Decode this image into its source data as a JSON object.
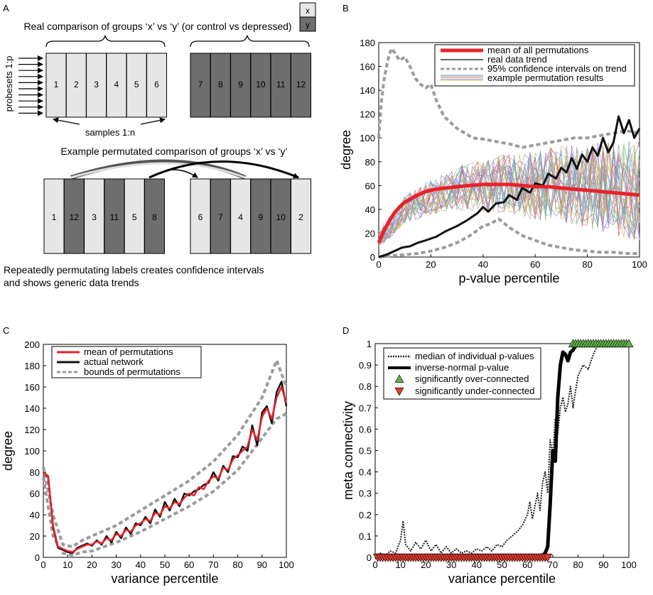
{
  "panel_labels": {
    "a": "A",
    "b": "B",
    "c": "C",
    "d": "D"
  },
  "panelA": {
    "legend_x": "x",
    "legend_y": "y",
    "title_real": "Real comparison of groups ‘x’ vs ‘y’ (or control vs depressed)",
    "probesets_label": "probesets 1:p",
    "samples_label": "samples 1:n",
    "top_boxes": [
      "1",
      "2",
      "3",
      "4",
      "5",
      "6",
      "7",
      "8",
      "9",
      "10",
      "11",
      "12"
    ],
    "top_shades": [
      "light",
      "light",
      "light",
      "light",
      "light",
      "light",
      "dark",
      "dark",
      "dark",
      "dark",
      "dark",
      "dark"
    ],
    "title_perm": "Example permutated comparison of groups ‘x’ vs ‘y’",
    "bottom_boxes": [
      "1",
      "12",
      "3",
      "11",
      "5",
      "8",
      "6",
      "7",
      "4",
      "9",
      "10",
      "2"
    ],
    "bottom_shades": [
      "light",
      "dark",
      "light",
      "dark",
      "light",
      "dark",
      "light",
      "dark",
      "light",
      "dark",
      "dark",
      "light"
    ],
    "caption_line1": "Repeatedly permutating labels creates confidence intervals",
    "caption_line2": "and shows generic data trends"
  },
  "colors": {
    "light_box": "#e6e6e6",
    "dark_box": "#6e6e6e",
    "red": "#e8222a",
    "gray": "#9b9b9b",
    "green": "#5fb34a",
    "triangle_red": "#e03a2f"
  },
  "chart_data": [
    {
      "id": "B",
      "type": "line",
      "xlabel": "p-value percentile",
      "ylabel": "degree",
      "xlim": [
        0,
        100
      ],
      "ylim": [
        0,
        180
      ],
      "xticks": [
        "0",
        "20",
        "40",
        "60",
        "80",
        "100"
      ],
      "yticks": [
        "0",
        "20",
        "40",
        "60",
        "80",
        "100",
        "120",
        "140",
        "160",
        "180"
      ],
      "legend": [
        "mean of all permutations",
        "real data trend",
        "95% confidence intervals on trend",
        "example permutation results"
      ],
      "legend_position": "top-right",
      "series": [
        {
          "name": "mean of all permutations",
          "x": [
            0,
            2,
            4,
            6,
            8,
            10,
            14,
            18,
            22,
            26,
            30,
            35,
            40,
            45,
            50,
            55,
            60,
            65,
            70,
            75,
            80,
            85,
            90,
            95,
            100
          ],
          "values": [
            12,
            22,
            30,
            37,
            42,
            46,
            51,
            55,
            57,
            58,
            59,
            60,
            61,
            61,
            61,
            60,
            59,
            59,
            58,
            57,
            56,
            55,
            54,
            53,
            52
          ]
        },
        {
          "name": "real data trend",
          "x": [
            0,
            3,
            6,
            9,
            12,
            15,
            18,
            22,
            26,
            30,
            34,
            38,
            40,
            42,
            45,
            48,
            50,
            53,
            55,
            58,
            60,
            63,
            65,
            68,
            70,
            72,
            74,
            76,
            78,
            80,
            82,
            84,
            86,
            88,
            90,
            92,
            94,
            96,
            98,
            100
          ],
          "values": [
            0,
            2,
            5,
            8,
            9,
            12,
            14,
            17,
            22,
            26,
            31,
            37,
            42,
            38,
            45,
            46,
            52,
            48,
            58,
            54,
            62,
            60,
            70,
            66,
            75,
            71,
            83,
            74,
            86,
            80,
            92,
            85,
            100,
            88,
            96,
            118,
            104,
            115,
            100,
            108
          ]
        },
        {
          "name": "95% CI upper",
          "x": [
            0,
            1,
            2,
            3,
            4,
            5,
            6,
            8,
            10,
            12,
            14,
            16,
            18,
            20,
            22,
            25,
            28,
            30,
            33,
            36,
            40,
            45,
            50,
            55,
            60,
            65,
            70,
            75,
            80,
            85,
            90,
            95,
            100
          ],
          "values": [
            100,
            130,
            148,
            160,
            170,
            175,
            172,
            165,
            168,
            160,
            150,
            145,
            142,
            145,
            132,
            118,
            112,
            108,
            104,
            100,
            99,
            97,
            95,
            92,
            94,
            96,
            98,
            100,
            100,
            102,
            104,
            106,
            104
          ]
        },
        {
          "name": "95% CI lower",
          "x": [
            0,
            5,
            10,
            15,
            20,
            25,
            30,
            35,
            40,
            43,
            46,
            50,
            55,
            60,
            65,
            70,
            75,
            80,
            85,
            90,
            95,
            100
          ],
          "values": [
            0,
            1,
            2,
            3,
            5,
            8,
            12,
            18,
            26,
            28,
            32,
            25,
            18,
            14,
            10,
            8,
            6,
            5,
            4,
            4,
            3,
            3
          ]
        },
        {
          "name": "example permutation results",
          "x": [
            0,
            10,
            20,
            30,
            40,
            50,
            60,
            70,
            80,
            90,
            100
          ],
          "values": [
            15,
            40,
            50,
            58,
            60,
            62,
            60,
            62,
            60,
            58,
            56
          ]
        }
      ]
    },
    {
      "id": "C",
      "type": "line",
      "xlabel": "variance percentile",
      "ylabel": "degree",
      "xlim": [
        0,
        100
      ],
      "ylim": [
        0,
        200
      ],
      "xticks": [
        "0",
        "10",
        "20",
        "30",
        "40",
        "50",
        "60",
        "70",
        "80",
        "90",
        "100"
      ],
      "yticks": [
        "0",
        "20",
        "40",
        "60",
        "80",
        "100",
        "120",
        "140",
        "160",
        "180",
        "200"
      ],
      "legend": [
        "mean of permutations",
        "actual network",
        "bounds of permutations"
      ],
      "legend_position": "top-left",
      "series": [
        {
          "name": "mean of permutations",
          "x": [
            0,
            2,
            4,
            6,
            8,
            10,
            12,
            14,
            16,
            18,
            20,
            22,
            24,
            26,
            28,
            30,
            32,
            34,
            36,
            38,
            40,
            42,
            44,
            46,
            48,
            50,
            52,
            54,
            56,
            58,
            60,
            62,
            64,
            66,
            68,
            70,
            72,
            74,
            76,
            78,
            80,
            82,
            84,
            86,
            88,
            90,
            92,
            94,
            96,
            98,
            100
          ],
          "values": [
            80,
            75,
            30,
            10,
            8,
            6,
            5,
            8,
            10,
            12,
            12,
            15,
            13,
            18,
            16,
            22,
            20,
            26,
            24,
            30,
            32,
            36,
            34,
            42,
            40,
            48,
            46,
            52,
            50,
            56,
            60,
            58,
            66,
            64,
            72,
            76,
            74,
            84,
            82,
            92,
            96,
            100,
            104,
            120,
            110,
            132,
            140,
            130,
            150,
            160,
            145
          ]
        },
        {
          "name": "actual network",
          "x": [
            0,
            2,
            4,
            6,
            8,
            10,
            12,
            14,
            16,
            18,
            20,
            22,
            24,
            26,
            28,
            30,
            32,
            34,
            36,
            38,
            40,
            42,
            44,
            46,
            48,
            50,
            52,
            54,
            56,
            58,
            60,
            62,
            64,
            66,
            68,
            70,
            72,
            74,
            76,
            78,
            80,
            82,
            84,
            86,
            88,
            90,
            92,
            94,
            96,
            98,
            100
          ],
          "values": [
            80,
            76,
            28,
            9,
            7,
            5,
            4,
            9,
            11,
            13,
            11,
            16,
            12,
            20,
            14,
            24,
            18,
            28,
            22,
            32,
            30,
            38,
            32,
            45,
            38,
            52,
            44,
            55,
            48,
            60,
            58,
            62,
            64,
            68,
            70,
            80,
            72,
            86,
            80,
            95,
            94,
            104,
            100,
            124,
            105,
            136,
            142,
            126,
            155,
            165,
            142
          ]
        },
        {
          "name": "bounds of permutations (upper)",
          "x": [
            0,
            4,
            8,
            12,
            16,
            20,
            30,
            40,
            50,
            60,
            70,
            80,
            90,
            96,
            100
          ],
          "values": [
            85,
            40,
            12,
            10,
            16,
            20,
            30,
            44,
            58,
            72,
            90,
            115,
            150,
            185,
            160
          ]
        },
        {
          "name": "bounds of permutations (lower)",
          "x": [
            0,
            4,
            8,
            12,
            16,
            20,
            30,
            40,
            50,
            60,
            70,
            80,
            90,
            96,
            100
          ],
          "values": [
            75,
            20,
            4,
            2,
            5,
            6,
            14,
            24,
            36,
            48,
            62,
            82,
            112,
            130,
            135
          ]
        }
      ]
    },
    {
      "id": "D",
      "type": "line",
      "xlabel": "variance percentile",
      "ylabel": "meta connectivity",
      "xlim": [
        0,
        100
      ],
      "ylim": [
        0,
        1
      ],
      "xticks": [
        "0",
        "10",
        "20",
        "30",
        "40",
        "50",
        "60",
        "70",
        "80",
        "90",
        "100"
      ],
      "yticks": [
        "0",
        "0.1",
        "0.2",
        "0.3",
        "0.4",
        "0.5",
        "0.6",
        "0.7",
        "0.8",
        "0.9",
        "1"
      ],
      "legend": [
        "median of individual p-values",
        "inverse-normal p-value",
        "significantly over-connected",
        "significantly under-connected"
      ],
      "legend_position": "top-left",
      "series": [
        {
          "name": "median of individual p-values",
          "x": [
            0,
            2,
            4,
            6,
            8,
            10,
            11,
            12,
            14,
            16,
            18,
            20,
            22,
            24,
            26,
            28,
            30,
            32,
            34,
            36,
            38,
            40,
            42,
            44,
            46,
            48,
            50,
            52,
            54,
            56,
            58,
            60,
            61,
            62,
            63,
            64,
            65,
            66,
            67,
            68,
            69,
            70,
            71,
            72,
            73,
            74,
            75,
            76,
            77,
            78,
            79,
            80,
            82,
            84,
            86,
            88,
            90
          ],
          "values": [
            0.01,
            0.02,
            0.01,
            0.03,
            0.02,
            0.08,
            0.17,
            0.06,
            0.03,
            0.07,
            0.04,
            0.08,
            0.03,
            0.06,
            0.02,
            0.05,
            0.02,
            0.04,
            0.02,
            0.03,
            0.02,
            0.04,
            0.03,
            0.05,
            0.03,
            0.06,
            0.05,
            0.08,
            0.1,
            0.12,
            0.15,
            0.2,
            0.26,
            0.18,
            0.24,
            0.3,
            0.22,
            0.35,
            0.4,
            0.3,
            0.55,
            0.48,
            0.65,
            0.58,
            0.7,
            0.75,
            0.68,
            0.72,
            0.8,
            0.7,
            0.78,
            0.85,
            0.9,
            0.88,
            0.95,
            1,
            1
          ]
        },
        {
          "name": "inverse-normal p-value",
          "x": [
            0,
            10,
            20,
            30,
            40,
            50,
            60,
            64,
            66,
            67,
            68,
            69,
            70,
            71,
            72,
            73,
            74,
            75,
            76,
            77,
            78,
            79,
            80
          ],
          "values": [
            0,
            0,
            0,
            0,
            0,
            0,
            0,
            0,
            0.01,
            0.02,
            0.05,
            0.25,
            0.5,
            0.45,
            0.75,
            0.9,
            0.96,
            0.95,
            0.92,
            0.96,
            0.97,
            0.99,
            1
          ]
        },
        {
          "name": "significantly over-connected",
          "x": [
            78,
            79,
            80,
            81,
            82,
            83,
            84,
            85,
            86,
            87,
            88,
            89,
            90,
            91,
            92,
            93,
            94,
            95,
            96,
            97,
            98,
            99,
            100
          ],
          "values": [
            1,
            1,
            1,
            1,
            1,
            1,
            1,
            1,
            1,
            1,
            1,
            1,
            1,
            1,
            1,
            1,
            1,
            1,
            1,
            1,
            1,
            1,
            1
          ]
        },
        {
          "name": "significantly under-connected",
          "x": [
            1,
            2,
            3,
            4,
            5,
            6,
            7,
            8,
            9,
            10,
            11,
            12,
            13,
            14,
            15,
            16,
            17,
            18,
            19,
            20,
            21,
            22,
            23,
            24,
            25,
            26,
            27,
            28,
            29,
            30,
            31,
            32,
            33,
            34,
            35,
            36,
            37,
            38,
            39,
            40,
            41,
            42,
            43,
            44,
            45,
            46,
            47,
            48,
            49,
            50,
            51,
            52,
            53,
            54,
            55,
            56,
            57,
            58,
            59,
            60,
            61,
            62,
            63,
            64,
            65,
            66,
            67,
            68
          ],
          "values": [
            0,
            0,
            0,
            0,
            0,
            0,
            0,
            0,
            0,
            0,
            0,
            0,
            0,
            0,
            0,
            0,
            0,
            0,
            0,
            0,
            0,
            0,
            0,
            0,
            0,
            0,
            0,
            0,
            0,
            0,
            0,
            0,
            0,
            0,
            0,
            0,
            0,
            0,
            0,
            0,
            0,
            0,
            0,
            0,
            0,
            0,
            0,
            0,
            0,
            0,
            0,
            0,
            0,
            0,
            0,
            0,
            0,
            0,
            0,
            0,
            0,
            0,
            0,
            0,
            0,
            0,
            0,
            0
          ]
        }
      ]
    }
  ]
}
